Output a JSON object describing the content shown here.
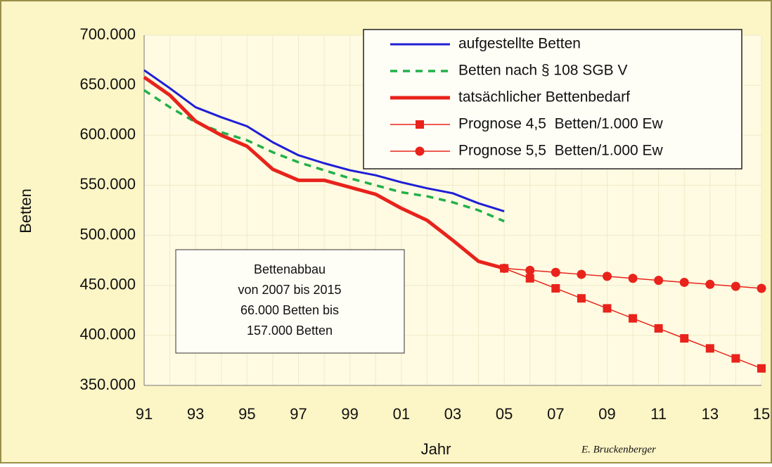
{
  "chart_data": {
    "type": "line",
    "xlabel": "Jahr",
    "ylabel": "Betten",
    "categories": [
      "91",
      null,
      "93",
      null,
      "95",
      null,
      "97",
      null,
      "99",
      null,
      "01",
      null,
      "03",
      null,
      "05",
      null,
      "07",
      null,
      "09",
      null,
      "11",
      null,
      "13",
      null,
      "15"
    ],
    "series": [
      {
        "name": "aufgestellte Betten",
        "color": "#1f1fd6",
        "width": 3,
        "dash": false,
        "marker": null,
        "values": [
          665000,
          647000,
          628000,
          618000,
          609000,
          593000,
          580000,
          572000,
          565000,
          560000,
          553000,
          547000,
          542000,
          532000,
          524000,
          null,
          null,
          null,
          null,
          null,
          null,
          null,
          null,
          null,
          null
        ]
      },
      {
        "name": "Betten nach § 108 SGB V",
        "color": "#22b04a",
        "width": 3.5,
        "dash": true,
        "marker": null,
        "values": [
          645000,
          628000,
          613000,
          603000,
          595000,
          583000,
          573000,
          565000,
          557000,
          550000,
          543000,
          539000,
          533000,
          525000,
          514000,
          null,
          null,
          null,
          null,
          null,
          null,
          null,
          null,
          null,
          null
        ]
      },
      {
        "name": "tatsächlicher Bettenbedarf",
        "color": "#e8231c",
        "width": 5,
        "dash": false,
        "marker": null,
        "values": [
          658000,
          640000,
          614000,
          600000,
          589000,
          566000,
          555000,
          555000,
          548000,
          541000,
          527000,
          515000,
          495000,
          474000,
          467000,
          null,
          null,
          null,
          null,
          null,
          null,
          null,
          null,
          null,
          null
        ]
      },
      {
        "name": "Prognose 4,5  Betten/1.000 Ew",
        "color": "#e8231c",
        "width": 1.5,
        "dash": false,
        "marker": "square",
        "values": [
          null,
          null,
          null,
          null,
          null,
          null,
          null,
          null,
          null,
          null,
          null,
          null,
          null,
          null,
          467000,
          457000,
          447000,
          437000,
          427000,
          417000,
          407000,
          397000,
          387000,
          377000,
          367000
        ]
      },
      {
        "name": "Prognose 5,5  Betten/1.000 Ew",
        "color": "#e8231c",
        "width": 1.5,
        "dash": false,
        "marker": "circle",
        "values": [
          null,
          null,
          null,
          null,
          null,
          null,
          null,
          null,
          null,
          null,
          null,
          null,
          null,
          null,
          467000,
          465000,
          463000,
          461000,
          459000,
          457000,
          455000,
          453000,
          451000,
          449000,
          447000
        ]
      }
    ],
    "ylim": [
      350000,
      700000
    ],
    "yticks": [
      {
        "value": 350000,
        "label": "350.000"
      },
      {
        "value": 400000,
        "label": "400.000"
      },
      {
        "value": 450000,
        "label": "450.000"
      },
      {
        "value": 500000,
        "label": "500.000"
      },
      {
        "value": 550000,
        "label": "550.000"
      },
      {
        "value": 600000,
        "label": "600.000"
      },
      {
        "value": 650000,
        "label": "650.000"
      },
      {
        "value": 700000,
        "label": "700.000"
      }
    ],
    "grid": true,
    "legend": "upper right",
    "annotation": [
      "Bettenabbau",
      "von 2007 bis 2015",
      "66.000 Betten bis",
      "157.000 Betten"
    ],
    "credit": "E. Bruckenberger"
  }
}
